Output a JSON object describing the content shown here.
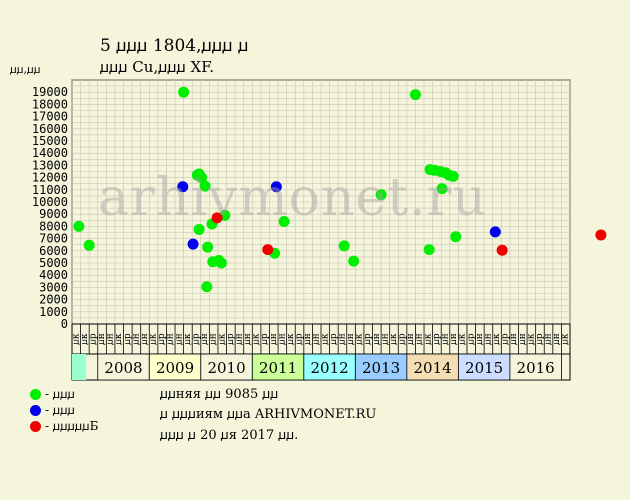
{
  "header": {
    "title_line1": "5 ꙡꙡꙡ 1804,ꙡꙡꙡ ꙡ",
    "title_line2": "ꙡꙡꙡ Cu,ꙡꙡꙡ XF."
  },
  "watermark": "arhivmonet.ru",
  "legend": {
    "items": [
      {
        "label": "- ꙡꙡꙡ",
        "color": "#00ee00"
      },
      {
        "label": "- ꙡꙡꙡ",
        "color": "#0000ee"
      },
      {
        "label": "- ꙡꙡꙡꙡꙡБ",
        "color": "#ee0000"
      }
    ]
  },
  "info": {
    "line1": "ꙡꙡняя ꙡꙡ 9085 ꙡꙡ",
    "line2": "ꙡ ꙡꙡꙡиям ꙡꙡа ARHIVMONET.RU",
    "line3": "ꙡꙡꙡ ꙡ 20 ꙡя 2017 ꙡꙡ."
  },
  "chart_data": {
    "type": "scatter",
    "ylabel": "ꙡꙡ,ꙡꙡ",
    "ylim": [
      0,
      20000
    ],
    "y_ticks": [
      0,
      1000,
      2000,
      3000,
      4000,
      5000,
      6000,
      7000,
      8000,
      9000,
      10000,
      11000,
      12000,
      13000,
      14000,
      15000,
      16000,
      17000,
      18000,
      19000
    ],
    "grid": true,
    "x_slot_labels": [
      "ꙡк",
      "ꙡк",
      "ꙡр",
      "ꙡн",
      "ꙡн",
      "ꙡк",
      "ꙡр",
      "ꙡн",
      "ꙡн",
      "ꙡк",
      "ꙡр",
      "ꙡн",
      "ꙡн",
      "ꙡк",
      "ꙡр",
      "ꙡн",
      "ꙡн",
      "ꙡк",
      "ꙡр",
      "ꙡн",
      "ꙡн",
      "ꙡк",
      "ꙡр",
      "ꙡн",
      "ꙡн",
      "ꙡк",
      "ꙡр",
      "ꙡн",
      "ꙡн",
      "ꙡк",
      "ꙡр",
      "ꙡн",
      "ꙡн",
      "ꙡк",
      "ꙡр",
      "ꙡн",
      "ꙡн",
      "ꙡк",
      "ꙡр",
      "ꙡн",
      "ꙡн",
      "ꙡк",
      "ꙡр",
      "ꙡн",
      "ꙡн",
      "ꙡк",
      "ꙡр",
      "ꙡн",
      "ꙡн",
      "ꙡк",
      "ꙡр",
      "ꙡн",
      "ꙡн",
      "ꙡк",
      "ꙡр",
      "ꙡн",
      "ꙡн",
      "ꙡк"
    ],
    "year_labels": [
      "2008",
      "2009",
      "2010",
      "2011",
      "2012",
      "2013",
      "2014",
      "2015",
      "2016"
    ],
    "year_colors": [
      "#99ffcc",
      "#f5f5dc",
      "#ffffcc",
      "#f5f5dc",
      "#ccff99",
      "#99ffff",
      "#99ccff",
      "#f5deb3",
      "#ccddff",
      "#f5f5dc"
    ],
    "series": [
      {
        "color": "#00ee00",
        "points": [
          {
            "x": 0.3,
            "y": 8000
          },
          {
            "x": 1.5,
            "y": 6450
          },
          {
            "x": 12.5,
            "y": 19000
          },
          {
            "x": 14.1,
            "y": 12200
          },
          {
            "x": 14.3,
            "y": 12300
          },
          {
            "x": 14.6,
            "y": 12000
          },
          {
            "x": 15.0,
            "y": 11300
          },
          {
            "x": 14.3,
            "y": 7750
          },
          {
            "x": 15.3,
            "y": 6300
          },
          {
            "x": 15.8,
            "y": 8200
          },
          {
            "x": 15.9,
            "y": 5100
          },
          {
            "x": 16.6,
            "y": 5200
          },
          {
            "x": 16.9,
            "y": 5000
          },
          {
            "x": 15.2,
            "y": 3050
          },
          {
            "x": 17.3,
            "y": 8900
          },
          {
            "x": 23.1,
            "y": 5800
          },
          {
            "x": 24.2,
            "y": 8400
          },
          {
            "x": 31.2,
            "y": 6400
          },
          {
            "x": 32.3,
            "y": 5150
          },
          {
            "x": 35.5,
            "y": 10600
          },
          {
            "x": 39.5,
            "y": 18800
          },
          {
            "x": 41.2,
            "y": 12650
          },
          {
            "x": 41.7,
            "y": 12600
          },
          {
            "x": 42.4,
            "y": 12500
          },
          {
            "x": 43.0,
            "y": 12400
          },
          {
            "x": 43.4,
            "y": 12200
          },
          {
            "x": 43.9,
            "y": 12100
          },
          {
            "x": 42.6,
            "y": 11100
          },
          {
            "x": 41.1,
            "y": 6100
          },
          {
            "x": 44.2,
            "y": 7150
          }
        ]
      },
      {
        "color": "#0000ee",
        "points": [
          {
            "x": 12.4,
            "y": 11250
          },
          {
            "x": 13.6,
            "y": 6550
          },
          {
            "x": 23.3,
            "y": 11250
          },
          {
            "x": 48.8,
            "y": 7550
          }
        ]
      },
      {
        "color": "#ee0000",
        "points": [
          {
            "x": 16.4,
            "y": 8700
          },
          {
            "x": 22.3,
            "y": 6100
          },
          {
            "x": 49.6,
            "y": 6050
          },
          {
            "x": 61.1,
            "y": 7300
          }
        ]
      }
    ]
  }
}
